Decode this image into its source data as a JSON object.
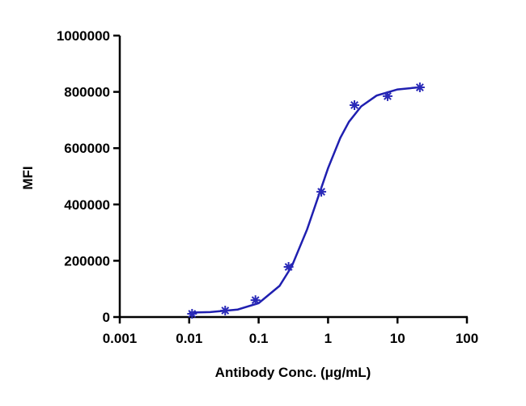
{
  "chart_data": {
    "type": "scatter",
    "xlabel": "Antibody Conc. (μg/mL)",
    "ylabel": "MFI",
    "xscale": "log",
    "xlim": [
      0.001,
      100
    ],
    "xticks": [
      0.001,
      0.01,
      0.1,
      1,
      10,
      100
    ],
    "ylim": [
      0,
      1000000
    ],
    "yticks": [
      0,
      200000,
      400000,
      600000,
      800000,
      1000000
    ],
    "grid": false,
    "series": [
      {
        "mode": "markers",
        "color": "#2a2ab8",
        "x": [
          0.011,
          0.033,
          0.09,
          0.27,
          0.8,
          2.4,
          7.2,
          21
        ],
        "values": [
          11500,
          23000,
          60000,
          178000,
          445000,
          753000,
          785000,
          816000
        ]
      },
      {
        "mode": "line",
        "color": "#1f1fb0",
        "x": [
          0.01,
          0.02,
          0.05,
          0.1,
          0.2,
          0.3,
          0.5,
          0.7,
          1,
          1.5,
          2,
          3,
          5,
          10,
          21
        ],
        "values": [
          15900,
          17700,
          26600,
          49300,
          110600,
          180000,
          312000,
          417500,
          529000,
          636500,
          693700,
          748500,
          786800,
          808700,
          816500
        ]
      }
    ]
  }
}
